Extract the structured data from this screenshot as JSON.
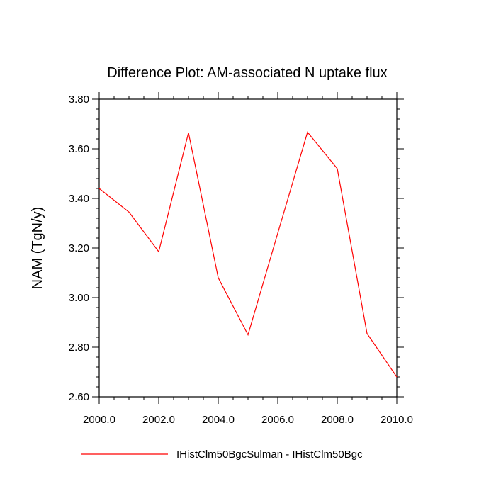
{
  "chart_data": {
    "type": "line",
    "title": "Difference Plot: AM-associated N uptake flux",
    "ylabel": "NAM  (TgN/y)",
    "xlabel": "",
    "xlim": [
      2000,
      2010
    ],
    "ylim": [
      2.6,
      3.8
    ],
    "x_ticks": [
      2000,
      2002,
      2004,
      2006,
      2008,
      2010
    ],
    "x_tick_labels": [
      "2000.0",
      "2002.0",
      "2004.0",
      "2006.0",
      "2008.0",
      "2010.0"
    ],
    "y_ticks": [
      2.6,
      2.8,
      3.0,
      3.2,
      3.4,
      3.6,
      3.8
    ],
    "y_tick_labels": [
      "2.60",
      "2.80",
      "3.00",
      "3.20",
      "3.40",
      "3.60",
      "3.80"
    ],
    "grid": false,
    "legend_position": "bottom",
    "series": [
      {
        "name": "IHistClm50BgcSulman - IHistClm50Bgc",
        "color": "#ff0000",
        "x": [
          2000,
          2001,
          2002,
          2003,
          2004,
          2005,
          2006,
          2007,
          2008,
          2009,
          2010
        ],
        "values": [
          3.44,
          3.345,
          3.185,
          3.665,
          3.08,
          2.85,
          3.26,
          3.667,
          3.52,
          2.855,
          2.68
        ]
      }
    ]
  }
}
